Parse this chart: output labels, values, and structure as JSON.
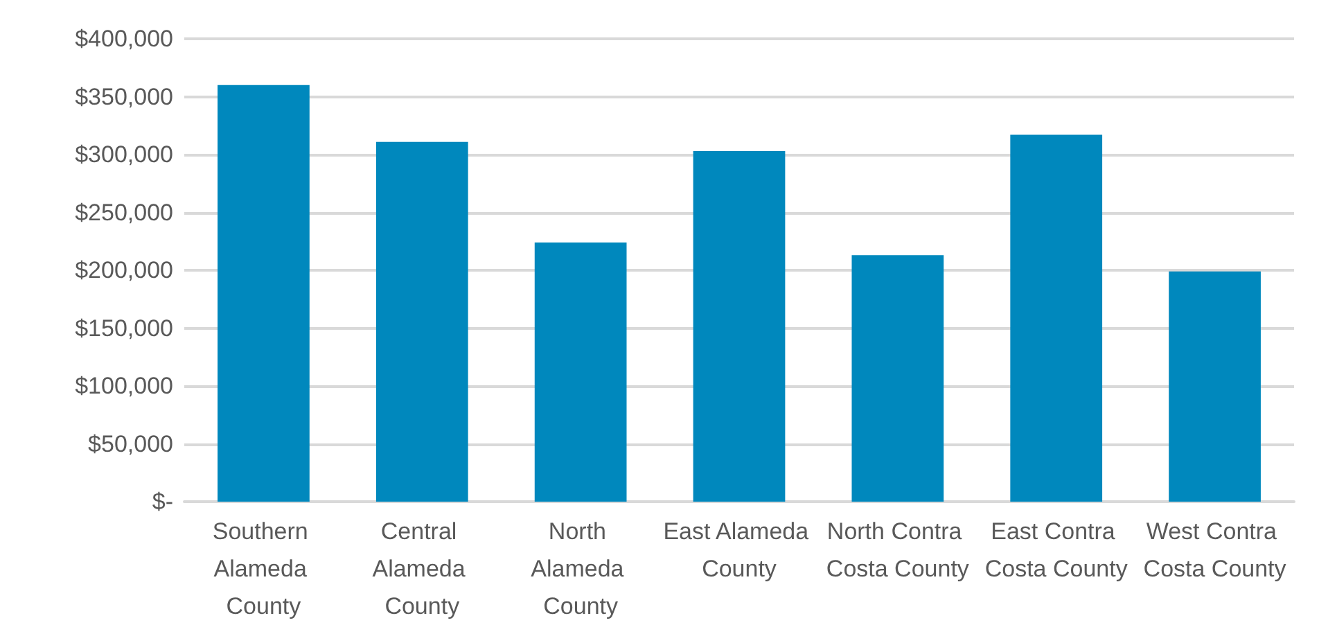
{
  "chart_data": {
    "type": "bar",
    "categories": [
      "Southern Alameda County",
      "Central Alameda County",
      "North Alameda County",
      "East Alameda County",
      "North Contra Costa County",
      "East Contra Costa County",
      "West Contra Costa County"
    ],
    "values": [
      360000,
      311000,
      224000,
      303000,
      213000,
      317000,
      199000
    ],
    "color": "#0088bd",
    "ylim": [
      0,
      400000
    ],
    "yticks": [
      {
        "value": 0,
        "label": "$-"
      },
      {
        "value": 50000,
        "label": "$50,000"
      },
      {
        "value": 100000,
        "label": "$100,000"
      },
      {
        "value": 150000,
        "label": "$150,000"
      },
      {
        "value": 200000,
        "label": "$200,000"
      },
      {
        "value": 250000,
        "label": "$250,000"
      },
      {
        "value": 300000,
        "label": "$300,000"
      },
      {
        "value": 350000,
        "label": "$350,000"
      },
      {
        "value": 400000,
        "label": "$400,000"
      }
    ],
    "grid": "y"
  }
}
